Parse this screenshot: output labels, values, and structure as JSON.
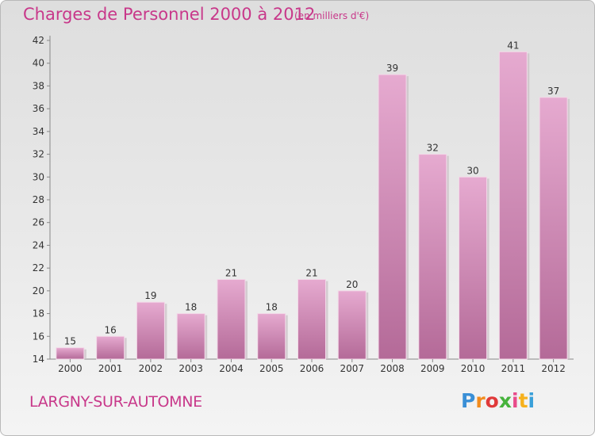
{
  "header": {
    "title": "Charges de Personnel 2000 à 2012",
    "subtitle": "(en milliers d'€)"
  },
  "footer": {
    "commune": "LARGNY-SUR-AUTOMNE",
    "logo_letters": [
      "P",
      "r",
      "o",
      "x",
      "i",
      "t",
      "i"
    ],
    "logo_colors": [
      "#3a8fd6",
      "#f28c1e",
      "#e03a3a",
      "#46b33c",
      "#e84b8a",
      "#f6b11d",
      "#3aa0d9"
    ]
  },
  "colors": {
    "bar_top": "#e6aad0",
    "bar_bottom": "#b46a98",
    "accent": "#c8388a"
  },
  "chart_data": {
    "type": "bar",
    "title": "Charges de Personnel 2000 à 2012",
    "subtitle": "(en milliers d'€)",
    "categories": [
      "2000",
      "2001",
      "2002",
      "2003",
      "2004",
      "2005",
      "2006",
      "2007",
      "2008",
      "2009",
      "2010",
      "2011",
      "2012"
    ],
    "values": [
      15,
      16,
      19,
      18,
      21,
      18,
      21,
      20,
      39,
      32,
      30,
      41,
      37
    ],
    "ylim": [
      14,
      42
    ],
    "yticks": [
      14,
      16,
      18,
      20,
      22,
      24,
      26,
      28,
      30,
      32,
      34,
      36,
      38,
      40,
      42
    ],
    "grid": false,
    "data_labels": true
  }
}
